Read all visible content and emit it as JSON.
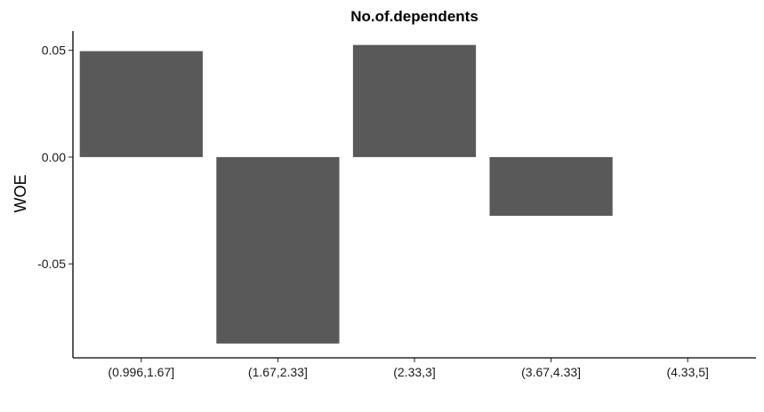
{
  "chart_data": {
    "type": "bar",
    "title": "No.of.dependents",
    "xlabel": "",
    "ylabel": "WOE",
    "categories": [
      "(0.996,1.67]",
      "(1.67,2.33]",
      "(2.33,3]",
      "(3.67,4.33]",
      "(4.33,5]"
    ],
    "values": [
      0.0496,
      -0.0873,
      0.0525,
      -0.0275,
      0
    ],
    "yticks": [
      0.05,
      0.0,
      -0.05
    ],
    "ytick_labels": [
      "0.05",
      "0.00",
      "-0.05"
    ],
    "ylim": [
      -0.094,
      0.059
    ],
    "grid": false,
    "legend": "none",
    "bar_color": "#595959"
  }
}
